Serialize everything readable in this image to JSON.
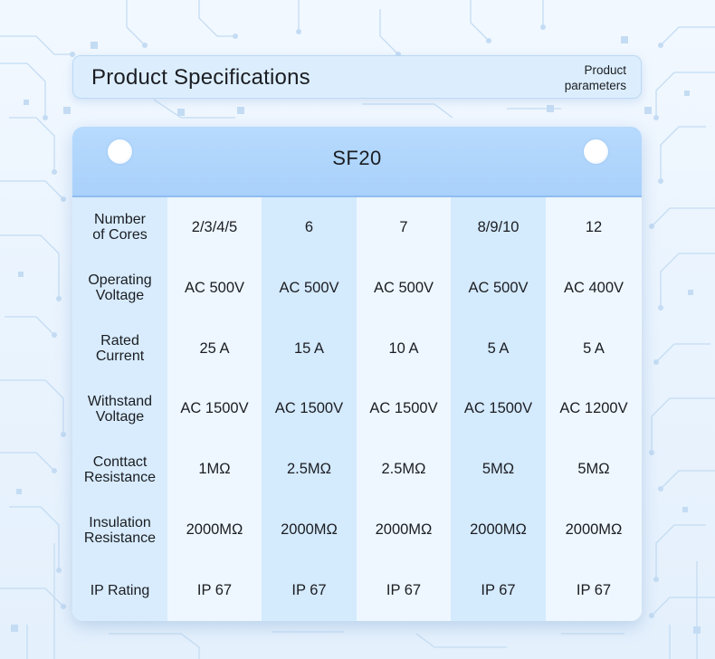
{
  "header": {
    "title": "Product Specifications",
    "subtitle_line1": "Product",
    "subtitle_line2": "parameters"
  },
  "table": {
    "model": "SF20",
    "rows": [
      {
        "label1": "Number",
        "label2": "of Cores",
        "values": [
          "2/3/4/5",
          "6",
          "7",
          "8/9/10",
          "12"
        ]
      },
      {
        "label1": "Operating",
        "label2": "Voltage",
        "values": [
          "AC 500V",
          "AC 500V",
          "AC 500V",
          "AC 500V",
          "AC 400V"
        ]
      },
      {
        "label1": "Rated",
        "label2": "Current",
        "values": [
          "25 A",
          "15 A",
          "10 A",
          "5 A",
          "5 A"
        ]
      },
      {
        "label1": "Withstand",
        "label2": "Voltage",
        "values": [
          "AC 1500V",
          "AC 1500V",
          "AC 1500V",
          "AC 1500V",
          "AC 1200V"
        ]
      },
      {
        "label1": "Conttact",
        "label2": "Resistance",
        "values": [
          "1MΩ",
          "2.5MΩ",
          "2.5MΩ",
          "5MΩ",
          "5MΩ"
        ]
      },
      {
        "label1": "Insulation",
        "label2": "Resistance",
        "values": [
          "2000MΩ",
          "2000MΩ",
          "2000MΩ",
          "2000MΩ",
          "2000MΩ"
        ]
      },
      {
        "label1": "IP Rating",
        "label2": "",
        "values": [
          "IP 67",
          "IP 67",
          "IP 67",
          "IP 67",
          "IP 67"
        ]
      }
    ]
  },
  "colors": {
    "background": "#eaf4fe",
    "header_fill": "#dceefe",
    "card_top": "#a9d1fb",
    "column_light": "#eef7ff",
    "column_dark": "#d4eafd",
    "circuit_lines": "#c4dcf3"
  }
}
